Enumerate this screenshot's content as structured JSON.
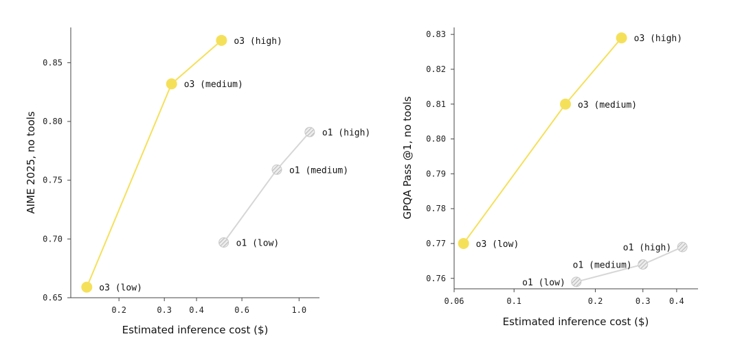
{
  "colors": {
    "o3": "#f5e05a",
    "o1": "#d6d6d6",
    "o1_hatch": "#a9a9a9",
    "axis": "#444444"
  },
  "chart_data": [
    {
      "type": "line",
      "xlabel": "Estimated inference cost ($)",
      "ylabel": "AIME 2025, no tools",
      "x_scale": "log",
      "xlim": [
        0.13,
        1.2
      ],
      "ylim": [
        0.65,
        0.88
      ],
      "x_ticks": [
        0.2,
        0.3,
        0.4,
        0.6,
        1.0
      ],
      "x_tick_labels": [
        "0.2",
        "0.3",
        "0.4",
        "0.6",
        "1.0"
      ],
      "y_ticks": [
        0.65,
        0.7,
        0.75,
        0.8,
        0.85
      ],
      "y_tick_labels": [
        "0.65",
        "0.70",
        "0.75",
        "0.80",
        "0.85"
      ],
      "grid": false,
      "series": [
        {
          "key": "o3",
          "points": [
            {
              "x": 0.15,
              "y": 0.659,
              "label": "o3 (low)"
            },
            {
              "x": 0.32,
              "y": 0.832,
              "label": "o3 (medium)"
            },
            {
              "x": 0.5,
              "y": 0.869,
              "label": "o3 (high)"
            }
          ]
        },
        {
          "key": "o1",
          "points": [
            {
              "x": 0.51,
              "y": 0.697,
              "label": "o1 (low)"
            },
            {
              "x": 0.82,
              "y": 0.759,
              "label": "o1 (medium)"
            },
            {
              "x": 1.1,
              "y": 0.791,
              "label": "o1 (high)"
            }
          ]
        }
      ]
    },
    {
      "type": "line",
      "xlabel": "Estimated inference cost ($)",
      "ylabel": "GPQA Pass @1, no tools",
      "x_scale": "log",
      "xlim": [
        0.06,
        0.48
      ],
      "ylim": [
        0.757,
        0.832
      ],
      "x_ticks": [
        0.06,
        0.1,
        0.2,
        0.3,
        0.4
      ],
      "x_tick_labels": [
        "0.06",
        "0.1",
        "0.2",
        "0.3",
        "0.4"
      ],
      "y_ticks": [
        0.76,
        0.77,
        0.78,
        0.79,
        0.8,
        0.81,
        0.82,
        0.83
      ],
      "y_tick_labels": [
        "0.76",
        "0.77",
        "0.78",
        "0.79",
        "0.80",
        "0.81",
        "0.82",
        "0.83"
      ],
      "grid": false,
      "series": [
        {
          "key": "o3",
          "points": [
            {
              "x": 0.065,
              "y": 0.77,
              "label": "o3 (low)"
            },
            {
              "x": 0.155,
              "y": 0.81,
              "label": "o3 (medium)"
            },
            {
              "x": 0.25,
              "y": 0.829,
              "label": "o3 (high)"
            }
          ]
        },
        {
          "key": "o1",
          "points": [
            {
              "x": 0.17,
              "y": 0.759,
              "label": "o1 (low)"
            },
            {
              "x": 0.3,
              "y": 0.764,
              "label": "o1 (medium)"
            },
            {
              "x": 0.42,
              "y": 0.769,
              "label": "o1 (high)"
            }
          ]
        }
      ]
    }
  ]
}
